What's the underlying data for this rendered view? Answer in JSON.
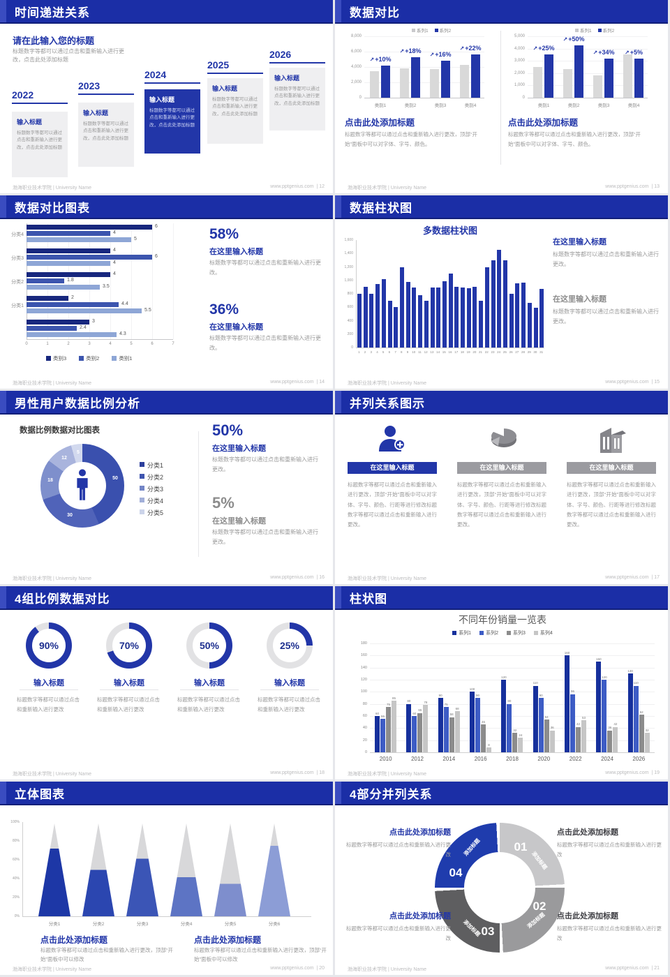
{
  "footer": {
    "left": "渤海职业技术学院 | University Name",
    "site": "www.pptgenius.com",
    "sep": "  | "
  },
  "colors": {
    "accent": "#2236a8",
    "header_bg": "#1b2ea6",
    "header_accent": "#3a4cc0",
    "body_gray": "#9a9a9a",
    "gray_title": "#8c8c8c",
    "series1_gray": "#d9d9d9",
    "hbar": [
      "#17277e",
      "#3c55ae",
      "#8ea6d6"
    ],
    "donut": [
      "#3a50ae",
      "#5063b9",
      "#7e8fcc",
      "#a9b4dd",
      "#d2d9ee"
    ],
    "donut_legend": [
      "#2c3f9c",
      "#3f55af",
      "#7385c6",
      "#a2afd9",
      "#ccd4ea"
    ],
    "grouped": [
      "#16309c",
      "#3d5cc5",
      "#8c8c8c",
      "#c6c6c6"
    ],
    "cone": [
      "#1d37a6",
      "#2b46b0",
      "#3b55b6",
      "#5d74c4",
      "#7e8ecd",
      "#8c9dd6"
    ],
    "cone_gray": "#d8d8da",
    "quad": [
      "#c7c7c9",
      "#9a9a9c",
      "#5e5e60",
      "#1f3cad"
    ]
  },
  "slides": [
    {
      "id": "time-progression",
      "page": "12",
      "title": "时间递进关系",
      "heading": "请在此输入您的标题",
      "heading_body": "标题数字等都可以通过点击和重新输入进行更改，点击此处添加标题",
      "step_label": "输入标题",
      "step_body": "标题数字等都可以通过点击和重新输入进行更改，点击此处添加标题",
      "years": [
        "2022",
        "2023",
        "2024",
        "2025",
        "2026"
      ],
      "highlight_index": 2
    },
    {
      "id": "data-comparison",
      "page": "13",
      "title": "数据对比",
      "legend": [
        "系列1",
        "系列2"
      ],
      "caption_title": "点击此处添加标题",
      "caption_body": "标题数字等都可以通过点击和重新输入进行更改，顶部“开始”面板中可以对字体、字号、颜色。",
      "charts": [
        {
          "type": "bar",
          "yticks": [
            "8,000",
            "6,000",
            "4,000",
            "2,000",
            "0"
          ],
          "ymax": 8000,
          "categories": [
            "类别1",
            "类别2",
            "类别3",
            "类别4"
          ],
          "series1": [
            3500,
            3800,
            3700,
            4300
          ],
          "series2": [
            4200,
            5300,
            4800,
            5600
          ],
          "growth": [
            "+10%",
            "+18%",
            "+16%",
            "+22%"
          ]
        },
        {
          "type": "bar",
          "yticks": [
            "5,000",
            "4,000",
            "3,000",
            "2,000",
            "1,000",
            "0"
          ],
          "ymax": 5000,
          "categories": [
            "类别1",
            "类别2",
            "类别3",
            "类别4"
          ],
          "series1": [
            2500,
            2350,
            1800,
            3500
          ],
          "series2": [
            3500,
            4250,
            3200,
            3200
          ],
          "growth": [
            "+25%",
            "+50%",
            "+34%",
            "+5%"
          ]
        }
      ]
    },
    {
      "id": "comparison-bar-chart",
      "page": "14",
      "title": "数据对比图表",
      "type": "horizontal-bar",
      "xmax": 7,
      "xticks": [
        "0",
        "1",
        "2",
        "3",
        "4",
        "5",
        "6",
        "7"
      ],
      "groups": [
        {
          "label": "分类4",
          "values": [
            6,
            4,
            5
          ]
        },
        {
          "label": "分类3",
          "values": [
            4,
            6,
            4
          ]
        },
        {
          "label": "分类2",
          "values": [
            4,
            1.8,
            3.5
          ]
        },
        {
          "label": "分类1",
          "values": [
            2,
            4.4,
            5.5
          ]
        },
        {
          "label": "",
          "values": [
            3,
            2.4,
            4.3
          ]
        }
      ],
      "legend": [
        "类别3",
        "类别2",
        "类别1"
      ],
      "stats": [
        {
          "pct": "58%",
          "t": "在这里输入标题",
          "b": "标题数字等都可以通过点击和重新输入进行更改。"
        },
        {
          "pct": "36%",
          "t": "在这里输入标题",
          "b": "标题数字等都可以通过点击和重新输入进行更改。"
        }
      ]
    },
    {
      "id": "column-chart",
      "page": "15",
      "title": "数据柱状图",
      "type": "bar",
      "chart_title": "多数据柱状图",
      "ymax": 1600,
      "yticks": [
        "1,600",
        "1,400",
        "1,200",
        "1,000",
        "800",
        "600",
        "400",
        "200",
        "0"
      ],
      "values": [
        800,
        900,
        800,
        950,
        1020,
        700,
        600,
        1200,
        980,
        890,
        780,
        700,
        890,
        890,
        990,
        1100,
        900,
        890,
        880,
        900,
        700,
        1200,
        1300,
        1450,
        1300,
        800,
        960,
        970,
        660,
        590,
        870
      ],
      "xlabels": [
        "1",
        "2",
        "3",
        "4",
        "5",
        "6",
        "7",
        "8",
        "9",
        "10",
        "11",
        "12",
        "13",
        "14",
        "15",
        "16",
        "17",
        "18",
        "19",
        "20",
        "21",
        "22",
        "23",
        "24",
        "25",
        "26",
        "27",
        "28",
        "29",
        "30",
        "31"
      ],
      "stats": [
        {
          "t": "在这里输入标题",
          "b": "标题数字等都可以通过点击和重新输入进行更改。",
          "accent": true
        },
        {
          "t": "在这里输入标题",
          "b": "标题数字等都可以通过点击和重新输入进行更改。",
          "accent": false
        }
      ]
    },
    {
      "id": "male-user-ratio",
      "page": "16",
      "title": "男性用户数据比例分析",
      "type": "donut",
      "chart_title": "数据比例数据对比图表",
      "slices": [
        {
          "label": "分类1",
          "value": 50
        },
        {
          "label": "分类2",
          "value": 30
        },
        {
          "label": "分类3",
          "value": 18
        },
        {
          "label": "分类4",
          "value": 12
        },
        {
          "label": "分类5",
          "value": 5
        }
      ],
      "center_icon": "male-person-icon",
      "stats": [
        {
          "pct": "50%",
          "t": "在这里输入标题",
          "b": "标题数字等都可以通过点击和重新输入进行更改。",
          "accent": true
        },
        {
          "pct": "5%",
          "t": "在这里输入标题",
          "b": "标题数字等都可以通过点击和重新输入进行更改。",
          "accent": false
        }
      ]
    },
    {
      "id": "parallel-relations",
      "page": "17",
      "title": "并列关系图示",
      "box_title": "在这里输入标题",
      "box_body": "标题数字等都可以通过点击和重新输入进行更改，顶部“开始”面板中可以对字体、字号、颜色、行距等进行修改标题数字等都可以通过点击和重新输入进行更改。",
      "icons": [
        "person-add-icon",
        "pie-3d-icon",
        "building-icon"
      ]
    },
    {
      "id": "four-ratio-rings",
      "page": "18",
      "title": "4组比例数据对比",
      "type": "ring",
      "rings": [
        {
          "pct": 90,
          "label": "90%"
        },
        {
          "pct": 70,
          "label": "70%"
        },
        {
          "pct": 50,
          "label": "50%"
        },
        {
          "pct": 25,
          "label": "25%"
        }
      ],
      "item_title": "输入标题",
      "item_body": "标题数字等都可以通过点击和重新输入进行更改"
    },
    {
      "id": "grouped-bar-chart",
      "page": "19",
      "title": "柱状图",
      "type": "bar",
      "chart_title": "不同年份销量一览表",
      "ymax": 180,
      "yticks": [
        "180",
        "160",
        "140",
        "120",
        "100",
        "80",
        "60",
        "40",
        "20",
        "0"
      ],
      "legend": [
        "系列1",
        "系列2",
        "系列3",
        "系列4"
      ],
      "categories": [
        "2010",
        "2012",
        "2014",
        "2016",
        "2018",
        "2020",
        "2022",
        "2024",
        "2026"
      ],
      "series": [
        {
          "name": "系列1",
          "values": [
            60,
            80,
            90,
            100,
            120,
            110,
            160,
            150,
            130
          ]
        },
        {
          "name": "系列2",
          "values": [
            55,
            60,
            75,
            90,
            80,
            90,
            96,
            120,
            110
          ]
        },
        {
          "name": "系列3",
          "values": [
            75,
            65,
            58,
            46,
            32,
            54,
            42,
            36,
            62
          ]
        },
        {
          "name": "系列4",
          "values": [
            85,
            78,
            68,
            8,
            24,
            36,
            53,
            42,
            32
          ]
        }
      ]
    },
    {
      "id": "cone-chart",
      "page": "20",
      "title": "立体图表",
      "type": "cone",
      "yticks": [
        "100%",
        "80%",
        "60%",
        "40%",
        "20%",
        "0%"
      ],
      "categories": [
        "分类1",
        "分类2",
        "分类3",
        "分类4",
        "分类5",
        "分类6"
      ],
      "fills": [
        73,
        50,
        62,
        42,
        35,
        76
      ],
      "caption_title": "点击此处添加标题",
      "caption_body": "标题数字等都可以通过点击和重新输入进行更改，顶部“开始”面板中可以修改"
    },
    {
      "id": "four-part-circle",
      "page": "21",
      "title": "4部分并列关系",
      "numbers": [
        "01",
        "02",
        "03",
        "04"
      ],
      "seg_label": "添加标题",
      "block_title": "点击此处添加标题",
      "block_body": "标题数字等都可以通过点击和重新输入进行更改"
    }
  ]
}
